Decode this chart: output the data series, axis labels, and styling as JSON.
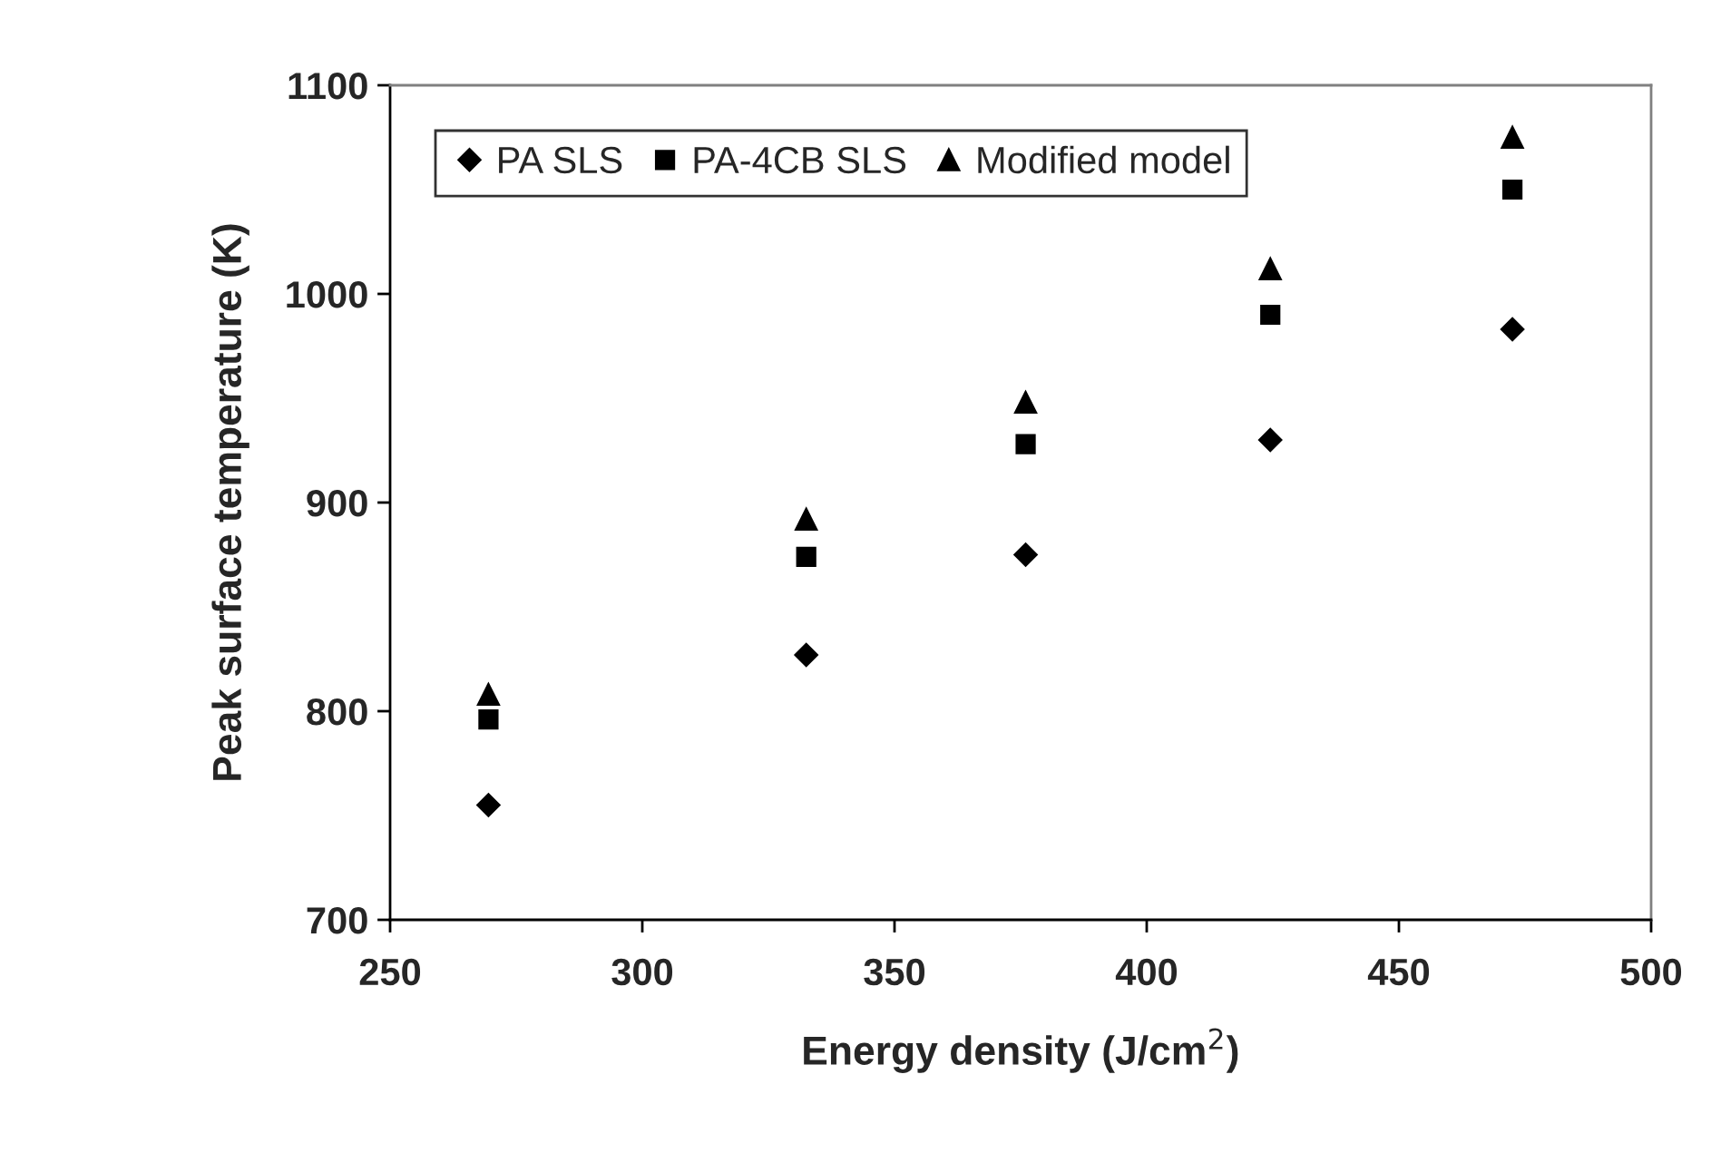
{
  "chart_data": {
    "type": "scatter",
    "xlabel": "Energy density (J/cm$^{2}$)",
    "ylabel": "Peak surface temperature (K)",
    "xlim": [
      250,
      500
    ],
    "xticks": [
      250,
      300,
      350,
      400,
      450,
      500
    ],
    "ylim": [
      700,
      1100
    ],
    "yticks": [
      700,
      800,
      900,
      1000,
      1100
    ],
    "grid": false,
    "legend": "top left",
    "series": [
      {
        "name": "PA SLS",
        "color": "#000000",
        "marker": "diamond",
        "x": [
          269.5,
          332.5,
          376,
          424.5,
          472.5
        ],
        "values": [
          755,
          827,
          875,
          930,
          983
        ]
      },
      {
        "name": "PA-4CB SLS",
        "color": "#000000",
        "marker": "square",
        "x": [
          269.5,
          332.5,
          376,
          424.5,
          472.5
        ],
        "values": [
          796,
          874,
          928,
          990,
          1050
        ]
      },
      {
        "name": "Modified model",
        "color": "#000000",
        "marker": "triangle",
        "x": [
          269.5,
          332.5,
          376,
          424.5,
          472.5
        ],
        "values": [
          808,
          892,
          948,
          1012,
          1075
        ]
      }
    ]
  }
}
